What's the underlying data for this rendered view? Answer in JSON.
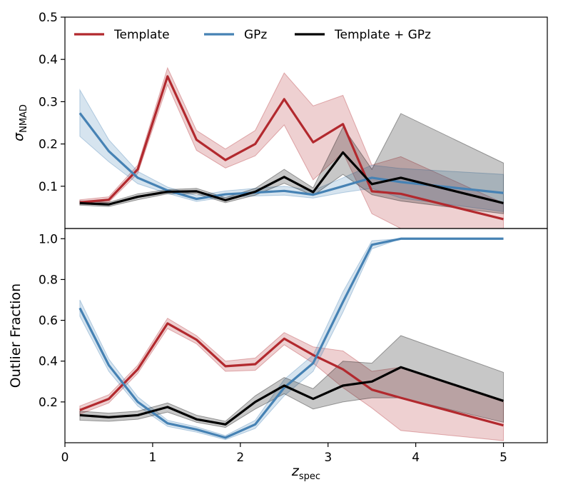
{
  "chart_data": [
    {
      "type": "line",
      "panel": "top",
      "title": "",
      "ylabel_symbol": "σ",
      "ylabel_sub": "NMAD",
      "xlabel": "",
      "xlim": [
        0,
        5.5
      ],
      "ylim": [
        0,
        0.5
      ],
      "yticks": [
        0.1,
        0.2,
        0.3,
        0.4,
        0.5
      ],
      "ytick_labels": [
        "0.1",
        "0.2",
        "0.3",
        "0.4",
        "0.5"
      ],
      "legend": {
        "position": "top-left",
        "ncol": 3
      },
      "x": [
        0.17,
        0.5,
        0.83,
        1.17,
        1.5,
        1.83,
        2.17,
        2.5,
        2.83,
        3.17,
        3.5,
        3.83,
        5.0
      ],
      "series": [
        {
          "name": "Template",
          "color": "#b2292e",
          "values": [
            0.062,
            0.068,
            0.14,
            0.36,
            0.21,
            0.162,
            0.2,
            0.306,
            0.204,
            0.247,
            0.088,
            0.082,
            0.022
          ],
          "upper": [
            0.068,
            0.075,
            0.15,
            0.38,
            0.232,
            0.188,
            0.232,
            0.368,
            0.29,
            0.315,
            0.15,
            0.17,
            0.06
          ],
          "lower": [
            0.058,
            0.062,
            0.13,
            0.34,
            0.185,
            0.143,
            0.172,
            0.245,
            0.115,
            0.18,
            0.035,
            0.0,
            0.0
          ]
        },
        {
          "name": "GPz",
          "color": "#4682b4",
          "values": [
            0.273,
            0.183,
            0.12,
            0.09,
            0.07,
            0.081,
            0.085,
            0.089,
            0.08,
            0.1,
            0.12,
            0.11,
            0.084
          ],
          "upper": [
            0.328,
            0.21,
            0.135,
            0.098,
            0.078,
            0.089,
            0.095,
            0.1,
            0.09,
            0.12,
            0.15,
            0.142,
            0.128
          ],
          "lower": [
            0.218,
            0.158,
            0.106,
            0.083,
            0.064,
            0.074,
            0.077,
            0.079,
            0.072,
            0.085,
            0.095,
            0.072,
            0.04
          ]
        },
        {
          "name": "Template + GPz",
          "color": "#000000",
          "values": [
            0.06,
            0.057,
            0.075,
            0.087,
            0.088,
            0.067,
            0.087,
            0.122,
            0.086,
            0.18,
            0.105,
            0.12,
            0.06
          ],
          "upper": [
            0.065,
            0.062,
            0.082,
            0.092,
            0.095,
            0.073,
            0.095,
            0.14,
            0.096,
            0.24,
            0.14,
            0.272,
            0.155
          ],
          "lower": [
            0.055,
            0.052,
            0.068,
            0.082,
            0.082,
            0.061,
            0.079,
            0.107,
            0.078,
            0.128,
            0.08,
            0.065,
            0.035
          ]
        }
      ]
    },
    {
      "type": "line",
      "panel": "bottom",
      "title": "",
      "ylabel": "Outlier Fraction",
      "xlabel_main": "z",
      "xlabel_sub": "spec",
      "xlim": [
        0,
        5.5
      ],
      "ylim": [
        0,
        1.05
      ],
      "xticks": [
        0,
        1,
        2,
        3,
        4,
        5
      ],
      "xtick_labels": [
        "0",
        "1",
        "2",
        "3",
        "4",
        "5"
      ],
      "yticks": [
        0.2,
        0.4,
        0.6,
        0.8,
        1.0
      ],
      "ytick_labels": [
        "0.2",
        "0.4",
        "0.6",
        "0.8",
        "1.0"
      ],
      "x": [
        0.17,
        0.5,
        0.83,
        1.17,
        1.5,
        1.83,
        2.17,
        2.5,
        2.83,
        3.17,
        3.5,
        3.83,
        5.0
      ],
      "series": [
        {
          "name": "Template",
          "color": "#b2292e",
          "values": [
            0.16,
            0.215,
            0.36,
            0.585,
            0.505,
            0.375,
            0.385,
            0.51,
            0.43,
            0.36,
            0.26,
            0.22,
            0.085
          ],
          "upper": [
            0.18,
            0.235,
            0.38,
            0.61,
            0.525,
            0.4,
            0.415,
            0.54,
            0.47,
            0.45,
            0.35,
            0.37,
            0.2
          ],
          "lower": [
            0.14,
            0.195,
            0.34,
            0.56,
            0.485,
            0.35,
            0.355,
            0.48,
            0.39,
            0.27,
            0.17,
            0.06,
            0.01
          ]
        },
        {
          "name": "GPz",
          "color": "#4682b4",
          "values": [
            0.66,
            0.38,
            0.2,
            0.095,
            0.065,
            0.025,
            0.09,
            0.27,
            0.39,
            0.69,
            0.97,
            1.0,
            1.0
          ],
          "upper": [
            0.7,
            0.41,
            0.225,
            0.11,
            0.078,
            0.035,
            0.11,
            0.31,
            0.43,
            0.74,
            0.99,
            1.0,
            1.0
          ],
          "lower": [
            0.62,
            0.35,
            0.18,
            0.08,
            0.052,
            0.015,
            0.07,
            0.23,
            0.35,
            0.64,
            0.95,
            1.0,
            1.0
          ]
        },
        {
          "name": "Template + GPz",
          "color": "#000000",
          "values": [
            0.135,
            0.125,
            0.135,
            0.175,
            0.115,
            0.09,
            0.2,
            0.28,
            0.215,
            0.28,
            0.3,
            0.37,
            0.205
          ],
          "upper": [
            0.155,
            0.145,
            0.155,
            0.195,
            0.135,
            0.105,
            0.23,
            0.32,
            0.265,
            0.4,
            0.39,
            0.525,
            0.345
          ],
          "lower": [
            0.11,
            0.105,
            0.115,
            0.15,
            0.1,
            0.075,
            0.165,
            0.24,
            0.165,
            0.2,
            0.22,
            0.22,
            0.1
          ]
        }
      ]
    }
  ]
}
